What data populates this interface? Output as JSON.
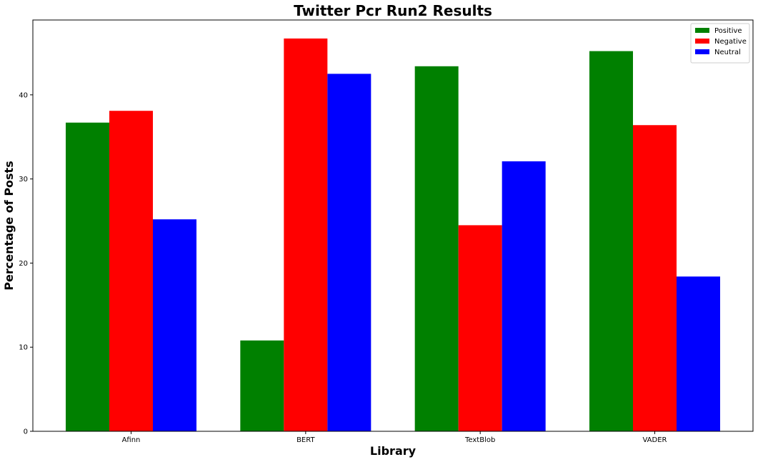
{
  "chart_data": {
    "type": "bar",
    "title": "Twitter Pcr Run2 Results",
    "xlabel": "Library",
    "ylabel": "Percentage of Posts",
    "categories": [
      "Afinn",
      "BERT",
      "TextBlob",
      "VADER"
    ],
    "series": [
      {
        "name": "Positive",
        "color": "#008000",
        "values": [
          36.7,
          10.8,
          43.4,
          45.2
        ]
      },
      {
        "name": "Negative",
        "color": "#ff0000",
        "values": [
          38.1,
          46.7,
          24.5,
          36.4
        ]
      },
      {
        "name": "Neutral",
        "color": "#0000ff",
        "values": [
          25.2,
          42.5,
          32.1,
          18.4
        ]
      }
    ],
    "ylim": [
      0,
      48.9
    ],
    "yticks": [
      0,
      10,
      20,
      30,
      40
    ],
    "grid": false,
    "legend_position": "top-right"
  }
}
